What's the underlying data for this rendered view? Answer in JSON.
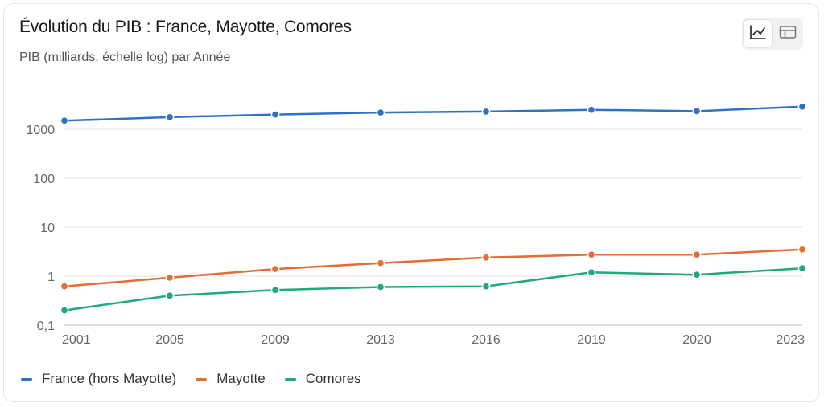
{
  "header": {
    "title": "Évolution du PIB : France, Mayotte, Comores",
    "subtitle": "PIB (milliards, échelle log) par Année"
  },
  "view_toggle": {
    "options": [
      {
        "icon": "line-chart-icon",
        "active": true
      },
      {
        "icon": "table-icon",
        "active": false
      }
    ]
  },
  "chart_data": {
    "type": "line",
    "title": "Évolution du PIB : France, Mayotte, Comores",
    "subtitle": "PIB (milliards, échelle log) par Année",
    "xlabel": "",
    "ylabel": "",
    "yscale": "log",
    "ylim": [
      0.1,
      3000
    ],
    "yticks": [
      {
        "value": 0.1,
        "label": "0,1"
      },
      {
        "value": 1,
        "label": "1"
      },
      {
        "value": 10,
        "label": "10"
      },
      {
        "value": 100,
        "label": "100"
      },
      {
        "value": 1000,
        "label": "1000"
      }
    ],
    "categories": [
      "2001",
      "2005",
      "2009",
      "2013",
      "2016",
      "2019",
      "2020",
      "2023"
    ],
    "grid": "horizontal",
    "legend_position": "bottom-left",
    "series": [
      {
        "name": "France (hors Mayotte)",
        "color": "#2f72c4",
        "values": [
          1500,
          1770,
          2000,
          2200,
          2300,
          2500,
          2350,
          2900
        ]
      },
      {
        "name": "Mayotte",
        "color": "#e26d35",
        "values": [
          0.62,
          0.93,
          1.4,
          1.85,
          2.4,
          2.75,
          2.75,
          3.5
        ]
      },
      {
        "name": "Comores",
        "color": "#1fa97c",
        "values": [
          0.2,
          0.4,
          0.52,
          0.6,
          0.62,
          1.2,
          1.07,
          1.45
        ]
      }
    ]
  }
}
